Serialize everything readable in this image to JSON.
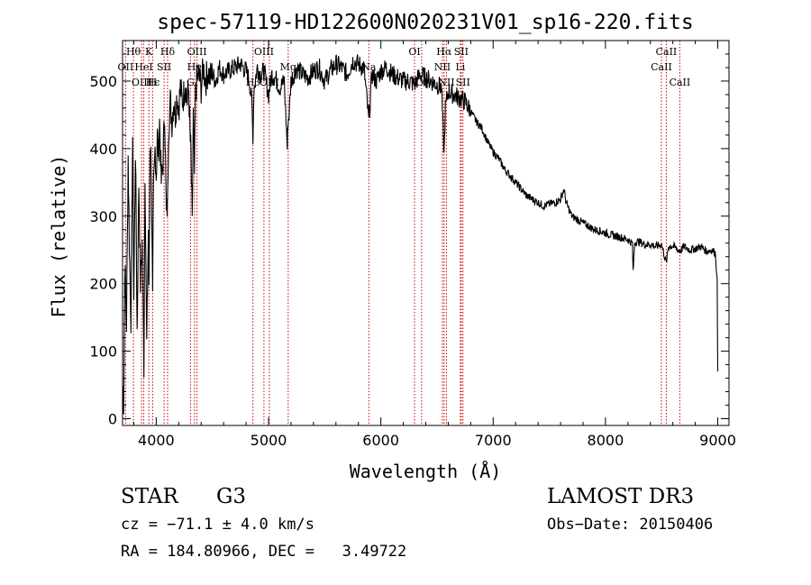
{
  "chart_data": {
    "type": "line",
    "title": "spec-57119-HD122600N020231V01_sp16-220.fits",
    "xlabel": "Wavelength (Å)",
    "ylabel": "Flux (relative)",
    "xlim": [
      3700,
      9100
    ],
    "ylim": [
      -10,
      560
    ],
    "xticks": [
      4000,
      5000,
      6000,
      7000,
      8000,
      9000
    ],
    "yticks": [
      0,
      100,
      200,
      300,
      400,
      500
    ],
    "xminor_step": 200,
    "yminor_step": 20,
    "grid": false,
    "series": [
      {
        "name": "flux",
        "color": "#000000",
        "x": [
          3700,
          3710,
          3720,
          3735,
          3750,
          3760,
          3775,
          3790,
          3800,
          3815,
          3830,
          3845,
          3860,
          3875,
          3890,
          3900,
          3915,
          3930,
          3935,
          3945,
          3955,
          3968,
          3975,
          3990,
          4000,
          4010,
          4020,
          4030,
          4045,
          4060,
          4075,
          4090,
          4101,
          4110,
          4125,
          4140,
          4155,
          4170,
          4185,
          4200,
          4215,
          4230,
          4245,
          4260,
          4275,
          4290,
          4300,
          4310,
          4320,
          4330,
          4340,
          4350,
          4360,
          4380,
          4400,
          4420,
          4440,
          4460,
          4480,
          4500,
          4530,
          4560,
          4600,
          4650,
          4700,
          4750,
          4800,
          4830,
          4850,
          4861,
          4870,
          4900,
          4930,
          4960,
          5000,
          5030,
          5060,
          5100,
          5140,
          5167,
          5172,
          5183,
          5200,
          5250,
          5300,
          5350,
          5400,
          5450,
          5500,
          5550,
          5600,
          5650,
          5700,
          5750,
          5800,
          5850,
          5893,
          5920,
          5960,
          6000,
          6050,
          6100,
          6150,
          6200,
          6250,
          6300,
          6350,
          6400,
          6450,
          6500,
          6540,
          6563,
          6575,
          6600,
          6650,
          6700,
          6750,
          6800,
          6850,
          6900,
          6950,
          7000,
          7050,
          7100,
          7150,
          7200,
          7250,
          7300,
          7350,
          7400,
          7450,
          7500,
          7550,
          7600,
          7630,
          7650,
          7700,
          7750,
          7800,
          7850,
          7900,
          7950,
          8000,
          8050,
          8100,
          8150,
          8200,
          8240,
          8246,
          8260,
          8300,
          8350,
          8400,
          8450,
          8500,
          8542,
          8560,
          8600,
          8662,
          8700,
          8750,
          8800,
          8850,
          8900,
          8950,
          8980,
          8995,
          9000
        ],
        "y": [
          50,
          20,
          230,
          140,
          390,
          260,
          150,
          420,
          180,
          400,
          130,
          350,
          200,
          260,
          80,
          370,
          110,
          280,
          180,
          410,
          380,
          170,
          330,
          400,
          360,
          420,
          390,
          440,
          350,
          380,
          460,
          300,
          320,
          430,
          470,
          440,
          470,
          450,
          480,
          460,
          490,
          470,
          480,
          500,
          470,
          490,
          420,
          390,
          280,
          450,
          360,
          480,
          500,
          510,
          490,
          520,
          500,
          515,
          505,
          510,
          500,
          520,
          510,
          515,
          520,
          525,
          515,
          500,
          470,
          420,
          490,
          520,
          510,
          515,
          480,
          510,
          505,
          490,
          500,
          400,
          440,
          450,
          500,
          520,
          510,
          505,
          515,
          520,
          500,
          515,
          525,
          520,
          510,
          530,
          525,
          520,
          440,
          510,
          500,
          515,
          520,
          510,
          505,
          500,
          500,
          495,
          510,
          505,
          500,
          495,
          490,
          390,
          460,
          485,
          480,
          475,
          470,
          455,
          440,
          430,
          410,
          395,
          385,
          370,
          360,
          350,
          340,
          330,
          325,
          320,
          315,
          318,
          320,
          325,
          340,
          320,
          300,
          295,
          290,
          285,
          280,
          278,
          275,
          272,
          270,
          268,
          265,
          260,
          215,
          262,
          262,
          258,
          258,
          255,
          258,
          230,
          255,
          256,
          248,
          255,
          250,
          252,
          255,
          248,
          250,
          245,
          200,
          70
        ],
        "baseline_dips_y": [
          20,
          30,
          15,
          40
        ]
      }
    ],
    "line_labels": [
      {
        "text": "Hθ",
        "x": 3797,
        "row": 1,
        "color": "#000000"
      },
      {
        "text": "K",
        "x": 3934,
        "row": 1,
        "color": "#000000"
      },
      {
        "text": "Hδ",
        "x": 4101,
        "row": 1,
        "color": "#000000"
      },
      {
        "text": "OIII",
        "x": 4363,
        "row": 1,
        "color": "#000000"
      },
      {
        "text": "OIII",
        "x": 4959,
        "row": 1,
        "color": "#000000"
      },
      {
        "text": "OI",
        "x": 6300,
        "row": 1,
        "color": "#000000"
      },
      {
        "text": "Hα",
        "x": 6563,
        "row": 1,
        "color": "#000000"
      },
      {
        "text": "SII",
        "x": 6716,
        "row": 1,
        "color": "#000000"
      },
      {
        "text": "CaII",
        "x": 8542,
        "row": 1,
        "color": "#000000"
      },
      {
        "text": "OII",
        "x": 3727,
        "row": 2,
        "color": "#000000"
      },
      {
        "text": "HeI",
        "x": 3889,
        "row": 2,
        "color": "#000000"
      },
      {
        "text": "SII",
        "x": 4070,
        "row": 2,
        "color": "#000000"
      },
      {
        "text": "Hγ",
        "x": 4340,
        "row": 2,
        "color": "#000000"
      },
      {
        "text": "Mg",
        "x": 5175,
        "row": 2,
        "color": "#000000"
      },
      {
        "text": "Na",
        "x": 5893,
        "row": 2,
        "color": "#000000"
      },
      {
        "text": "NII",
        "x": 6548,
        "row": 2,
        "color": "#000000"
      },
      {
        "text": "Li",
        "x": 6708,
        "row": 2,
        "color": "#000000"
      },
      {
        "text": "CaII",
        "x": 8498,
        "row": 2,
        "color": "#000000"
      },
      {
        "text": "OIII",
        "x": 3869,
        "row": 3,
        "color": "#000000"
      },
      {
        "text": "Hϵ",
        "x": 3970,
        "row": 3,
        "color": "#000000"
      },
      {
        "text": "H",
        "x": 3968,
        "row": 3,
        "color": "#000000"
      },
      {
        "text": "G",
        "x": 4305,
        "row": 3,
        "color": "#000000"
      },
      {
        "text": "Hβ",
        "x": 4861,
        "row": 3,
        "color": "#000000"
      },
      {
        "text": "OIII",
        "x": 5007,
        "row": 3,
        "color": "#000000"
      },
      {
        "text": "OI",
        "x": 6363,
        "row": 3,
        "color": "#000000"
      },
      {
        "text": "NII",
        "x": 6584,
        "row": 3,
        "color": "#000000"
      },
      {
        "text": "SII",
        "x": 6731,
        "row": 3,
        "color": "#000000"
      },
      {
        "text": "CaII",
        "x": 8662,
        "row": 3,
        "color": "#000000"
      }
    ],
    "marker_lines_x": [
      3727,
      3797,
      3869,
      3889,
      3934,
      3968,
      4070,
      4101,
      4305,
      4340,
      4363,
      4861,
      4959,
      5007,
      5175,
      5893,
      6300,
      6363,
      6548,
      6563,
      6584,
      6708,
      6716,
      6731,
      8498,
      8542,
      8662
    ],
    "marker_color": "#cc0000"
  },
  "info": {
    "object_type": "STAR",
    "subclass": "G3",
    "survey": "LAMOST DR3",
    "redshift_text": "cz = −71.1 ± 4.0 km/s",
    "obs_date_text": "Obs−Date: 20150406",
    "coords_text": "RA = 184.80966, DEC =   3.49722"
  }
}
